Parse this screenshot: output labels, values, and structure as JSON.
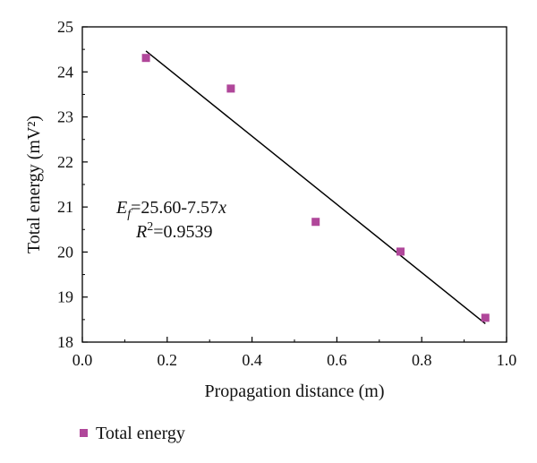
{
  "chart_data": {
    "type": "scatter",
    "xlabel": "Propagation distance (m)",
    "ylabel": "Total energy (mV²)",
    "xlim": [
      0.0,
      1.0
    ],
    "ylim": [
      18,
      25
    ],
    "x_ticks": [
      "0.0",
      "0.2",
      "0.4",
      "0.6",
      "0.8",
      "1.0"
    ],
    "y_ticks": [
      "18",
      "19",
      "20",
      "21",
      "22",
      "23",
      "24",
      "25"
    ],
    "series": [
      {
        "name": "Total energy",
        "marker": "square",
        "color": "#b0479a",
        "x": [
          0.15,
          0.35,
          0.55,
          0.75,
          0.95
        ],
        "y": [
          24.31,
          23.63,
          20.67,
          20.01,
          18.54
        ]
      }
    ],
    "fit_line": {
      "x_range": [
        0.15,
        0.95
      ],
      "intercept": 25.6,
      "slope": -7.57,
      "color": "#000000"
    },
    "annotation": {
      "eq_lhs": "E",
      "eq_sub": "f",
      "eq_rhs": "=25.60-7.57",
      "eq_var": "x",
      "r2_sym": "R",
      "r2_sup": "2",
      "r2_val": "=0.9539"
    },
    "legend": {
      "placement": "bottom-left",
      "label": "Total energy"
    },
    "grid": false
  }
}
